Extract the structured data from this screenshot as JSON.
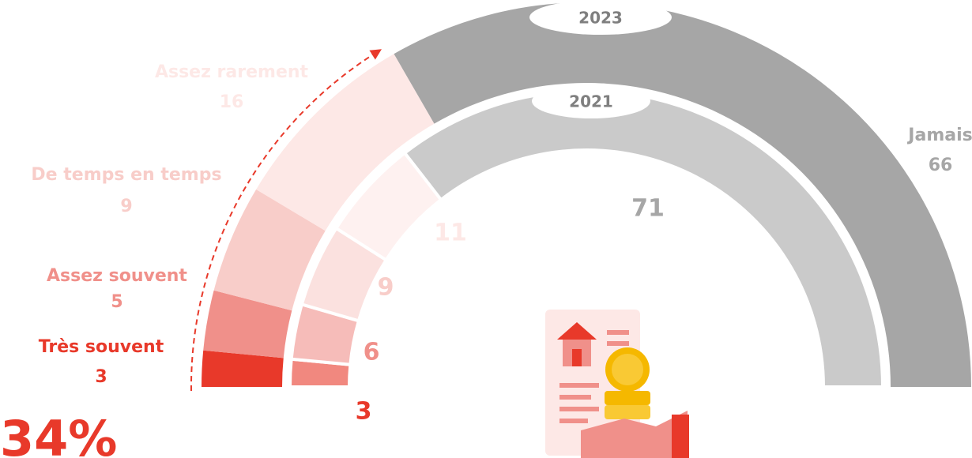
{
  "chart_data": {
    "type": "semi-donut",
    "categories": [
      "Très souvent",
      "Assez souvent",
      "De temps en temps",
      "Assez rarement",
      "Jamais"
    ],
    "series": [
      {
        "name": "2023",
        "values": [
          3,
          5,
          9,
          16,
          66
        ],
        "colors": [
          "#e8392a",
          "#f0908a",
          "#f8cdc9",
          "#fde8e6",
          "#a6a6a6"
        ]
      },
      {
        "name": "2021",
        "values": [
          3,
          6,
          9,
          11,
          71
        ],
        "colors": [
          "#e8392a",
          "#f0908a",
          "#f8cdc9",
          "#fde8e6",
          "#a6a6a6"
        ]
      }
    ],
    "annotation": "34%"
  }
}
